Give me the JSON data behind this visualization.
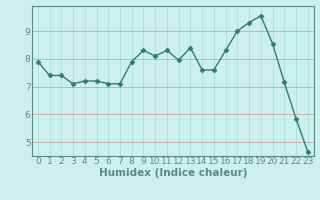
{
  "x": [
    0,
    1,
    2,
    3,
    4,
    5,
    6,
    7,
    8,
    9,
    10,
    11,
    12,
    13,
    14,
    15,
    16,
    17,
    18,
    19,
    20,
    21,
    22,
    23
  ],
  "y": [
    7.9,
    7.4,
    7.4,
    7.1,
    7.2,
    7.2,
    7.1,
    7.1,
    7.9,
    8.3,
    8.1,
    8.3,
    7.95,
    8.4,
    7.6,
    7.6,
    8.3,
    9.0,
    9.3,
    9.55,
    8.55,
    7.15,
    5.85,
    4.65
  ],
  "line_color": "#2e7d6e",
  "marker": "D",
  "markersize": 2.5,
  "linewidth": 1.0,
  "bg_color": "#ccf0ec",
  "grid_color": "#aaddd8",
  "axis_color": "#5a8a85",
  "xlabel": "Humidex (Indice chaleur)",
  "xlabel_fontsize": 7.5,
  "tick_fontsize": 6.5,
  "ylim": [
    4.5,
    9.9
  ],
  "xlim": [
    -0.5,
    23.5
  ],
  "yticks": [
    5,
    6,
    7,
    8,
    9
  ],
  "xticks": [
    0,
    1,
    2,
    3,
    4,
    5,
    6,
    7,
    8,
    9,
    10,
    11,
    12,
    13,
    14,
    15,
    16,
    17,
    18,
    19,
    20,
    21,
    22,
    23
  ]
}
